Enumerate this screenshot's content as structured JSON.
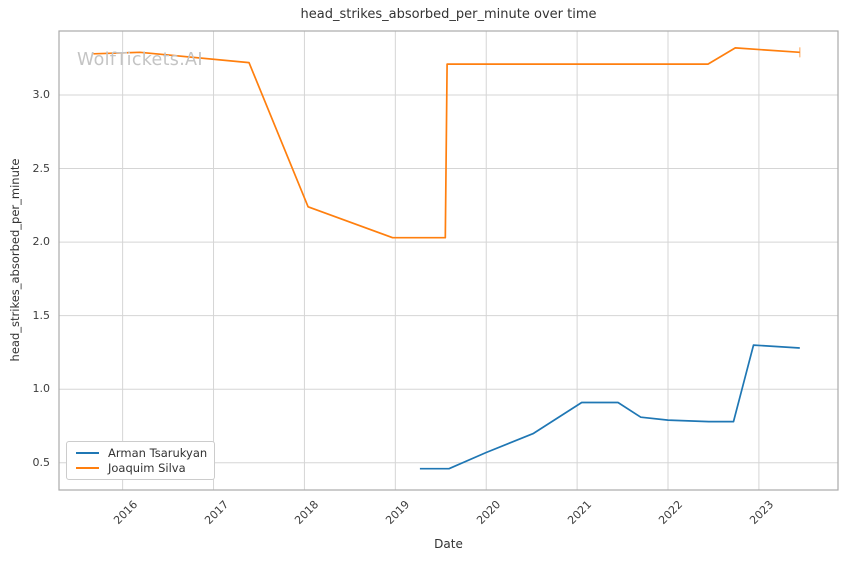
{
  "watermark": {
    "text": "WolfTickets.AI",
    "color": "#c4c4c4"
  },
  "style": {
    "background": "#ffffff",
    "grid_color": "#d5d5d5",
    "spine_color": "#ababab",
    "tick_label_color": "#3c3c3c",
    "text_color": "#333333"
  },
  "chart_data": {
    "type": "line",
    "title": "head_strikes_absorbed_per_minute over time",
    "xlabel": "Date",
    "ylabel": "head_strikes_absorbed_per_minute",
    "xlim": [
      2015.3,
      2023.87
    ],
    "ylim": [
      0.315,
      3.435
    ],
    "xticks": [
      2016,
      2017,
      2018,
      2019,
      2020,
      2021,
      2022,
      2023
    ],
    "yticks": [
      0.5,
      1.0,
      1.5,
      2.0,
      2.5,
      3.0
    ],
    "grid": true,
    "legend_position": "lower left",
    "series": [
      {
        "name": "Arman Tsarukyan",
        "color": "#1f77b4",
        "end_tick": false,
        "x": [
          2019.27,
          2019.59,
          2020.0,
          2020.52,
          2021.05,
          2021.45,
          2021.7,
          2022.0,
          2022.45,
          2022.72,
          2022.94,
          2023.45
        ],
        "y": [
          0.46,
          0.46,
          0.57,
          0.7,
          0.91,
          0.91,
          0.81,
          0.79,
          0.78,
          0.78,
          1.3,
          1.28
        ]
      },
      {
        "name": "Joaquim Silva",
        "color": "#ff7f0e",
        "end_tick": true,
        "x": [
          2015.68,
          2016.19,
          2017.39,
          2018.04,
          2018.97,
          2019.55,
          2019.57,
          2022.44,
          2022.74,
          2023.45
        ],
        "y": [
          3.28,
          3.29,
          3.22,
          2.24,
          2.03,
          2.03,
          3.21,
          3.21,
          3.32,
          3.29
        ]
      }
    ]
  }
}
